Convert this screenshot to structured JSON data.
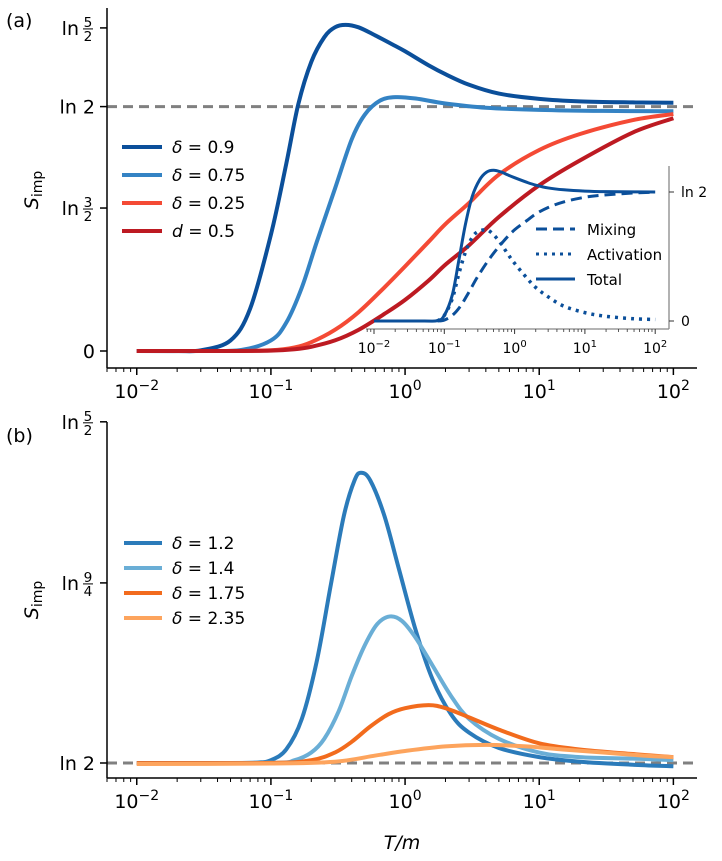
{
  "chart_data": [
    {
      "panel": "(a)",
      "type": "line",
      "title": "",
      "xlabel": "",
      "ylabel": "S_imp",
      "ylabel_main": "S",
      "ylabel_sub": "imp",
      "xscale": "log",
      "xlim": [
        0.006,
        150
      ],
      "ylim": [
        -0.05,
        0.975
      ],
      "xticks": [
        {
          "value": 0.01,
          "base": "10",
          "exp": "−2"
        },
        {
          "value": 0.1,
          "base": "10",
          "exp": "−1"
        },
        {
          "value": 1,
          "base": "10",
          "exp": "0"
        },
        {
          "value": 10,
          "base": "10",
          "exp": "1"
        },
        {
          "value": 100,
          "base": "10",
          "exp": "2"
        }
      ],
      "yticks": [
        {
          "value": 0,
          "label": "0",
          "frac": null
        },
        {
          "value": 0.405465,
          "label": "ln",
          "frac": [
            "3",
            "2"
          ]
        },
        {
          "value": 0.693147,
          "label": "ln 2",
          "frac": null
        },
        {
          "value": 0.916291,
          "label": "ln",
          "frac": [
            "5",
            "2"
          ]
        }
      ],
      "reference_line": {
        "value": 0.693147,
        "label": "ln 2",
        "style": "dashed",
        "color": "#808080"
      },
      "legend_position": "center-left",
      "series": [
        {
          "name": "δ = 0.9",
          "color": "#0b4f9a",
          "x": [
            0.01,
            0.02,
            0.03,
            0.05,
            0.07,
            0.1,
            0.13,
            0.16,
            0.2,
            0.25,
            0.3,
            0.36,
            0.45,
            0.6,
            0.8,
            1,
            1.5,
            2,
            3,
            5,
            10,
            20,
            50,
            100
          ],
          "y": [
            0,
            0,
            0.002,
            0.03,
            0.12,
            0.33,
            0.53,
            0.7,
            0.82,
            0.89,
            0.918,
            0.925,
            0.918,
            0.895,
            0.87,
            0.85,
            0.81,
            0.785,
            0.755,
            0.73,
            0.715,
            0.708,
            0.705,
            0.704
          ]
        },
        {
          "name": "δ = 0.75",
          "color": "#3483c4",
          "x": [
            0.01,
            0.03,
            0.06,
            0.1,
            0.13,
            0.17,
            0.22,
            0.3,
            0.4,
            0.5,
            0.65,
            0.85,
            1.2,
            2,
            4,
            10,
            30,
            100
          ],
          "y": [
            0,
            0,
            0.003,
            0.03,
            0.08,
            0.18,
            0.31,
            0.46,
            0.6,
            0.67,
            0.71,
            0.72,
            0.716,
            0.702,
            0.69,
            0.684,
            0.681,
            0.68
          ]
        },
        {
          "name": "δ = 0.25",
          "color": "#f44a35",
          "x": [
            0.01,
            0.05,
            0.1,
            0.15,
            0.2,
            0.3,
            0.45,
            0.7,
            1,
            1.5,
            2,
            3,
            5,
            10,
            20,
            50,
            100
          ],
          "y": [
            0,
            0,
            0.002,
            0.01,
            0.025,
            0.06,
            0.11,
            0.18,
            0.24,
            0.31,
            0.36,
            0.42,
            0.5,
            0.57,
            0.615,
            0.655,
            0.672
          ]
        },
        {
          "name": "d = 0.5",
          "color": "#bd1a22",
          "x": [
            0.01,
            0.05,
            0.1,
            0.15,
            0.2,
            0.3,
            0.45,
            0.7,
            1,
            1.5,
            2,
            3,
            5,
            10,
            20,
            50,
            100
          ],
          "y": [
            0,
            0,
            0.001,
            0.005,
            0.012,
            0.03,
            0.06,
            0.105,
            0.145,
            0.2,
            0.245,
            0.3,
            0.38,
            0.47,
            0.54,
            0.62,
            0.66
          ]
        }
      ],
      "inset": {
        "type": "line",
        "xscale": "log",
        "xlim": [
          0.007,
          150
        ],
        "ylim": [
          -0.02,
          0.86
        ],
        "xticks": [
          {
            "value": 0.01,
            "base": "10",
            "exp": "−2"
          },
          {
            "value": 0.1,
            "base": "10",
            "exp": "−1"
          },
          {
            "value": 1,
            "base": "10",
            "exp": "0"
          },
          {
            "value": 10,
            "base": "10",
            "exp": "1"
          },
          {
            "value": 100,
            "base": "10",
            "exp": "2"
          }
        ],
        "yticks": [
          {
            "value": 0,
            "label": "0"
          },
          {
            "value": 0.693147,
            "label": "ln 2"
          }
        ],
        "yaxis_side": "right",
        "legend_position": "center-right",
        "series": [
          {
            "name": "Mixing",
            "style": "dashed",
            "color": "#0b4f9a",
            "x": [
              0.08,
              0.1,
              0.13,
              0.17,
              0.22,
              0.3,
              0.45,
              0.7,
              1,
              1.5,
              2,
              3,
              5,
              10,
              20,
              50,
              100
            ],
            "y": [
              0,
              0.005,
              0.03,
              0.08,
              0.15,
              0.24,
              0.34,
              0.43,
              0.49,
              0.54,
              0.575,
              0.61,
              0.64,
              0.665,
              0.678,
              0.688,
              0.692
            ]
          },
          {
            "name": "Activation",
            "style": "dotted",
            "color": "#0b4f9a",
            "x": [
              0.08,
              0.1,
              0.13,
              0.16,
              0.2,
              0.25,
              0.3,
              0.38,
              0.45,
              0.6,
              0.8,
              1,
              1.5,
              2,
              3,
              5,
              10,
              20,
              50,
              100
            ],
            "y": [
              0,
              0.03,
              0.12,
              0.25,
              0.37,
              0.45,
              0.48,
              0.49,
              0.48,
              0.43,
              0.36,
              0.31,
              0.23,
              0.18,
              0.13,
              0.08,
              0.045,
              0.025,
              0.012,
              0.008
            ]
          },
          {
            "name": "Total",
            "style": "solid",
            "color": "#0b4f9a",
            "x": [
              0.01,
              0.05,
              0.08,
              0.1,
              0.13,
              0.16,
              0.2,
              0.25,
              0.32,
              0.4,
              0.5,
              0.65,
              0.8,
              1,
              1.5,
              2,
              3,
              5,
              10,
              20,
              50,
              100
            ],
            "y": [
              0,
              0,
              0.002,
              0.03,
              0.14,
              0.32,
              0.52,
              0.67,
              0.76,
              0.8,
              0.81,
              0.8,
              0.785,
              0.77,
              0.745,
              0.73,
              0.715,
              0.705,
              0.698,
              0.695,
              0.694,
              0.693
            ]
          }
        ]
      }
    },
    {
      "panel": "(b)",
      "type": "line",
      "title": "",
      "xlabel": "T/m",
      "ylabel": "S_imp",
      "ylabel_main": "S",
      "ylabel_sub": "imp",
      "xscale": "log",
      "xlim": [
        0.006,
        150
      ],
      "ylim": [
        0.6832,
        0.916291
      ],
      "xticks": [
        {
          "value": 0.01,
          "base": "10",
          "exp": "−2"
        },
        {
          "value": 0.1,
          "base": "10",
          "exp": "−1"
        },
        {
          "value": 1,
          "base": "10",
          "exp": "0"
        },
        {
          "value": 10,
          "base": "10",
          "exp": "1"
        },
        {
          "value": 100,
          "base": "10",
          "exp": "2"
        }
      ],
      "yticks": [
        {
          "value": 0.693147,
          "label": "ln 2",
          "frac": null
        },
        {
          "value": 0.81093,
          "label": "ln",
          "frac": [
            "9",
            "4"
          ]
        },
        {
          "value": 0.916291,
          "label": "ln",
          "frac": [
            "5",
            "2"
          ]
        }
      ],
      "reference_line": {
        "value": 0.693147,
        "label": "ln 2",
        "style": "dashed",
        "color": "#808080"
      },
      "legend_position": "center-left",
      "series": [
        {
          "name": "δ = 1.2",
          "color": "#2b7bba",
          "x": [
            0.01,
            0.05,
            0.08,
            0.1,
            0.13,
            0.17,
            0.22,
            0.28,
            0.35,
            0.42,
            0.47,
            0.55,
            0.7,
            0.9,
            1.2,
            1.6,
            2.2,
            3,
            5,
            10,
            20,
            50,
            100
          ],
          "y": [
            0.6931,
            0.6931,
            0.6935,
            0.695,
            0.702,
            0.722,
            0.76,
            0.81,
            0.855,
            0.878,
            0.883,
            0.878,
            0.855,
            0.82,
            0.78,
            0.748,
            0.725,
            0.713,
            0.703,
            0.697,
            0.694,
            0.692,
            0.691
          ]
        },
        {
          "name": "δ = 1.4",
          "color": "#6aaed6",
          "x": [
            0.01,
            0.1,
            0.15,
            0.2,
            0.25,
            0.32,
            0.4,
            0.5,
            0.62,
            0.77,
            0.95,
            1.2,
            1.6,
            2.2,
            3,
            5,
            10,
            20,
            50,
            100
          ],
          "y": [
            0.6931,
            0.6933,
            0.695,
            0.7,
            0.709,
            0.727,
            0.75,
            0.77,
            0.784,
            0.789,
            0.786,
            0.775,
            0.757,
            0.737,
            0.722,
            0.709,
            0.7,
            0.697,
            0.696,
            0.695
          ]
        },
        {
          "name": "δ = 1.75",
          "color": "#f26b1d",
          "x": [
            0.01,
            0.1,
            0.2,
            0.3,
            0.4,
            0.55,
            0.75,
            1,
            1.5,
            2,
            3,
            5,
            10,
            20,
            50,
            100
          ],
          "y": [
            0.6931,
            0.6932,
            0.695,
            0.7,
            0.707,
            0.717,
            0.725,
            0.729,
            0.731,
            0.729,
            0.723,
            0.715,
            0.706,
            0.702,
            0.699,
            0.697
          ]
        },
        {
          "name": "δ = 2.35",
          "color": "#fda45d",
          "x": [
            0.01,
            0.1,
            0.3,
            0.6,
            1,
            2,
            4,
            8,
            15,
            30,
            60,
            100
          ],
          "y": [
            0.6925,
            0.6928,
            0.694,
            0.698,
            0.701,
            0.704,
            0.705,
            0.704,
            0.702,
            0.7,
            0.698,
            0.697
          ]
        }
      ]
    }
  ]
}
